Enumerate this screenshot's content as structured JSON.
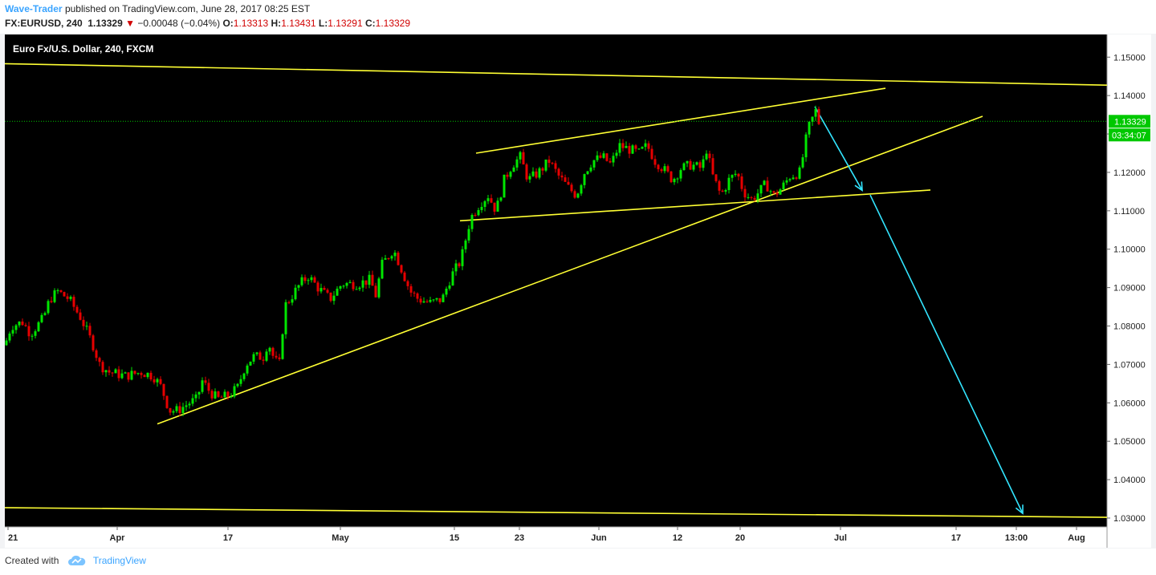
{
  "header": {
    "author": "Wave-Trader",
    "published_text": "published on TradingView.com, June 28, 2017 08:25 EST",
    "symbol": "FX:EURUSD, 240",
    "last": "1.13329",
    "change_arrow": "▼",
    "change": "−0.00048 (−0.04%)",
    "open_label": "O:",
    "open": "1.13313",
    "high_label": "H:",
    "high": "1.13431",
    "low_label": "L:",
    "low": "1.13291",
    "close_label": "C:",
    "close": "1.13329"
  },
  "footer": {
    "created_with": "Created with",
    "brand": "TradingView",
    "logo_icon": "tradingview-cloud-icon"
  },
  "chart_data": {
    "type": "candlestick",
    "title": "Euro Fx/U.S. Dollar, 240, FXCM",
    "colors": {
      "background": "#000000",
      "up": "#00e600",
      "down": "#e60000",
      "trendline": "#ffff33",
      "projection_arrow": "#33e5ff",
      "price_line": "#00c800",
      "axis_text": "#222222"
    },
    "x_ticks": [
      "21",
      "Apr",
      "17",
      "May",
      "15",
      "23",
      "Jun",
      "12",
      "20",
      "Jul",
      "17",
      "13:00",
      "Aug"
    ],
    "y_ticks": [
      "1.15000",
      "1.14000",
      "1.13000",
      "1.12000",
      "1.11000",
      "1.10000",
      "1.09000",
      "1.08000",
      "1.07000",
      "1.06000",
      "1.05000",
      "1.04000",
      "1.03000"
    ],
    "ylim": [
      1.0277,
      1.1559
    ],
    "current_price_label": "1.13329",
    "countdown_label": "03:34:07",
    "price_path": [
      {
        "x": 0,
        "y": 1.075
      },
      {
        "x": 8,
        "y": 1.08
      },
      {
        "x": 22,
        "y": 1.081
      },
      {
        "x": 32,
        "y": 1.078
      },
      {
        "x": 48,
        "y": 1.082
      },
      {
        "x": 56,
        "y": 1.087
      },
      {
        "x": 66,
        "y": 1.089
      },
      {
        "x": 80,
        "y": 1.087
      },
      {
        "x": 95,
        "y": 1.082
      },
      {
        "x": 110,
        "y": 1.075
      },
      {
        "x": 118,
        "y": 1.07
      },
      {
        "x": 130,
        "y": 1.068
      },
      {
        "x": 150,
        "y": 1.067
      },
      {
        "x": 170,
        "y": 1.068
      },
      {
        "x": 185,
        "y": 1.067
      },
      {
        "x": 195,
        "y": 1.064
      },
      {
        "x": 205,
        "y": 1.058
      },
      {
        "x": 215,
        "y": 1.058
      },
      {
        "x": 230,
        "y": 1.06
      },
      {
        "x": 240,
        "y": 1.061
      },
      {
        "x": 245,
        "y": 1.066
      },
      {
        "x": 255,
        "y": 1.063
      },
      {
        "x": 265,
        "y": 1.061
      },
      {
        "x": 280,
        "y": 1.062
      },
      {
        "x": 290,
        "y": 1.064
      },
      {
        "x": 300,
        "y": 1.07
      },
      {
        "x": 310,
        "y": 1.072
      },
      {
        "x": 322,
        "y": 1.072
      },
      {
        "x": 328,
        "y": 1.076
      },
      {
        "x": 336,
        "y": 1.071
      },
      {
        "x": 343,
        "y": 1.07
      },
      {
        "x": 348,
        "y": 1.085
      },
      {
        "x": 355,
        "y": 1.087
      },
      {
        "x": 368,
        "y": 1.091
      },
      {
        "x": 378,
        "y": 1.093
      },
      {
        "x": 390,
        "y": 1.09
      },
      {
        "x": 405,
        "y": 1.087
      },
      {
        "x": 420,
        "y": 1.091
      },
      {
        "x": 440,
        "y": 1.091
      },
      {
        "x": 455,
        "y": 1.092
      },
      {
        "x": 462,
        "y": 1.088
      },
      {
        "x": 470,
        "y": 1.096
      },
      {
        "x": 484,
        "y": 1.1
      },
      {
        "x": 492,
        "y": 1.096
      },
      {
        "x": 505,
        "y": 1.089
      },
      {
        "x": 515,
        "y": 1.087
      },
      {
        "x": 530,
        "y": 1.086
      },
      {
        "x": 545,
        "y": 1.087
      },
      {
        "x": 556,
        "y": 1.093
      },
      {
        "x": 568,
        "y": 1.097
      },
      {
        "x": 580,
        "y": 1.108
      },
      {
        "x": 592,
        "y": 1.112
      },
      {
        "x": 602,
        "y": 1.114
      },
      {
        "x": 612,
        "y": 1.11
      },
      {
        "x": 622,
        "y": 1.118
      },
      {
        "x": 632,
        "y": 1.122
      },
      {
        "x": 642,
        "y": 1.124
      },
      {
        "x": 652,
        "y": 1.118
      },
      {
        "x": 665,
        "y": 1.12
      },
      {
        "x": 678,
        "y": 1.123
      },
      {
        "x": 690,
        "y": 1.119
      },
      {
        "x": 702,
        "y": 1.116
      },
      {
        "x": 712,
        "y": 1.114
      },
      {
        "x": 722,
        "y": 1.12
      },
      {
        "x": 732,
        "y": 1.123
      },
      {
        "x": 745,
        "y": 1.124
      },
      {
        "x": 755,
        "y": 1.122
      },
      {
        "x": 765,
        "y": 1.127
      },
      {
        "x": 778,
        "y": 1.126
      },
      {
        "x": 790,
        "y": 1.125
      },
      {
        "x": 800,
        "y": 1.127
      },
      {
        "x": 810,
        "y": 1.123
      },
      {
        "x": 820,
        "y": 1.121
      },
      {
        "x": 832,
        "y": 1.118
      },
      {
        "x": 842,
        "y": 1.121
      },
      {
        "x": 855,
        "y": 1.122
      },
      {
        "x": 868,
        "y": 1.121
      },
      {
        "x": 874,
        "y": 1.126
      },
      {
        "x": 882,
        "y": 1.119
      },
      {
        "x": 892,
        "y": 1.114
      },
      {
        "x": 902,
        "y": 1.118
      },
      {
        "x": 912,
        "y": 1.12
      },
      {
        "x": 920,
        "y": 1.115
      },
      {
        "x": 930,
        "y": 1.113
      },
      {
        "x": 940,
        "y": 1.115
      },
      {
        "x": 948,
        "y": 1.117
      },
      {
        "x": 958,
        "y": 1.114
      },
      {
        "x": 968,
        "y": 1.116
      },
      {
        "x": 978,
        "y": 1.119
      },
      {
        "x": 990,
        "y": 1.12
      },
      {
        "x": 996,
        "y": 1.126
      },
      {
        "x": 1000,
        "y": 1.131
      },
      {
        "x": 1006,
        "y": 1.134
      },
      {
        "x": 1010,
        "y": 1.136
      },
      {
        "x": 1014,
        "y": 1.133
      }
    ],
    "drawings": [
      {
        "kind": "trendline",
        "from": [
          0,
          1.1483
        ],
        "to": [
          1373,
          1.1427
        ]
      },
      {
        "kind": "trendline",
        "from": [
          0,
          1.0327
        ],
        "to": [
          1373,
          1.0302
        ]
      },
      {
        "kind": "trendline",
        "from": [
          190,
          1.0545
        ],
        "to": [
          1218,
          1.1346
        ]
      },
      {
        "kind": "trendline",
        "from": [
          587,
          1.125
        ],
        "to": [
          1097,
          1.1419
        ]
      },
      {
        "kind": "trendline",
        "from": [
          567,
          1.1074
        ],
        "to": [
          1153,
          1.1154
        ]
      },
      {
        "kind": "arrow",
        "from": [
          1009,
          1.1371
        ],
        "to": [
          1068,
          1.1153
        ]
      },
      {
        "kind": "arrow",
        "from": [
          1078,
          1.1141
        ],
        "to": [
          1268,
          1.0312
        ]
      }
    ]
  }
}
